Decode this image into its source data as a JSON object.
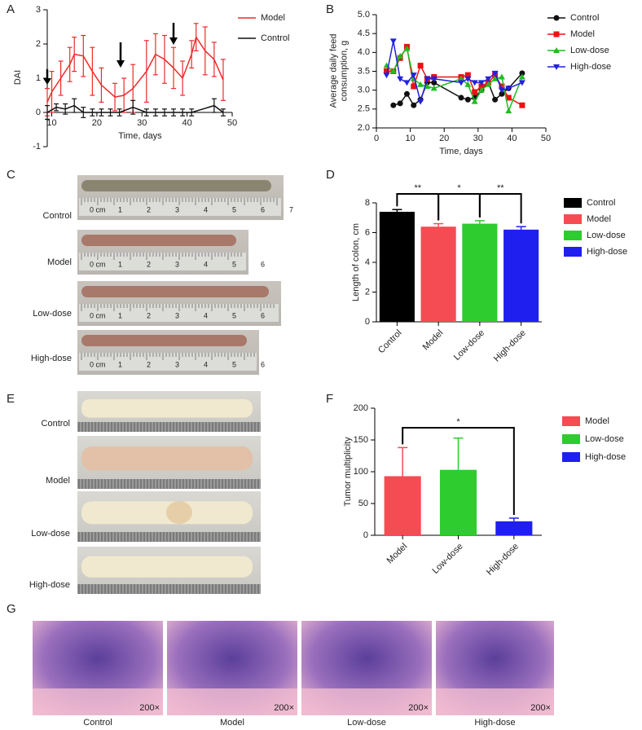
{
  "chart_data": [
    {
      "type": "line",
      "y_label": [
        "DAI"
      ],
      "x_label": "Time, days",
      "xlim": [
        9,
        50
      ],
      "xticks": [
        10,
        20,
        30,
        40,
        50
      ],
      "ylim": [
        -1,
        3
      ],
      "yticks": [
        -1,
        0,
        1,
        2,
        3
      ],
      "series": [
        {
          "name": "Model",
          "color": "#ee2a2a",
          "x": [
            9,
            10,
            12,
            14,
            15,
            17,
            19,
            21,
            24,
            26,
            28,
            31,
            33,
            35,
            37,
            39,
            41,
            42,
            44,
            46,
            48
          ],
          "values": [
            0.3,
            0.6,
            1.0,
            1.4,
            1.7,
            1.65,
            1.2,
            0.8,
            0.45,
            0.5,
            0.7,
            1.2,
            1.7,
            1.55,
            1.3,
            1.0,
            1.7,
            2.2,
            1.8,
            1.55,
            0.95
          ],
          "errors": [
            0.4,
            0.6,
            0.5,
            0.5,
            0.5,
            0.6,
            0.7,
            0.5,
            0.4,
            0.5,
            0.7,
            0.9,
            0.6,
            0.7,
            0.6,
            0.5,
            0.4,
            0.4,
            0.7,
            0.5,
            0.6
          ]
        },
        {
          "name": "Control",
          "color": "#111111",
          "x": [
            9,
            11,
            13,
            15,
            17,
            19,
            21,
            23,
            25,
            28,
            31,
            33,
            35,
            37,
            39,
            41,
            46,
            48
          ],
          "values": [
            0,
            0.15,
            0.1,
            0.2,
            0,
            0,
            0,
            0,
            0,
            0.15,
            0,
            0,
            0,
            0,
            0,
            0,
            0.2,
            0
          ],
          "errors": [
            0.2,
            0.1,
            0.15,
            0.2,
            0.15,
            0.1,
            0.1,
            0.1,
            0.1,
            0.2,
            0.1,
            0.1,
            0.1,
            0.1,
            0.1,
            0.1,
            0.2,
            0.1
          ]
        }
      ]
    },
    {
      "type": "line",
      "y_label": [
        "Average daily feed",
        "consumption, g"
      ],
      "x_label": "Time, days",
      "xlim": [
        0,
        50
      ],
      "xticks": [
        0,
        10,
        20,
        30,
        40,
        50
      ],
      "ylim": [
        2,
        5
      ],
      "yticks": [
        {
          "value": 2,
          "label": "2.0"
        },
        2.5,
        {
          "value": 3,
          "label": "3.0"
        },
        3.5,
        {
          "value": 4,
          "label": "4.0"
        },
        4.5,
        {
          "value": 5,
          "label": "5.0"
        }
      ],
      "series": [
        {
          "name": "Control",
          "color": "#111111",
          "marker": "circle",
          "x": [
            5,
            7,
            9,
            11,
            13,
            15,
            17,
            25,
            27,
            29,
            31,
            33,
            35,
            37,
            39,
            43
          ],
          "values": [
            2.6,
            2.65,
            2.9,
            2.6,
            2.75,
            3.2,
            3.2,
            2.8,
            2.75,
            2.8,
            3.0,
            3.2,
            2.75,
            2.9,
            3.05,
            3.45
          ]
        },
        {
          "name": "Model",
          "color": "#ee1111",
          "marker": "square",
          "x": [
            3,
            5,
            7,
            9,
            11,
            13,
            15,
            17,
            25,
            27,
            29,
            31,
            33,
            35,
            37,
            39,
            43
          ],
          "values": [
            3.5,
            3.5,
            3.85,
            4.15,
            3.1,
            3.65,
            3.3,
            3.35,
            3.35,
            3.4,
            2.95,
            3.1,
            3.2,
            3.4,
            3.1,
            2.8,
            2.6
          ]
        },
        {
          "name": "Low-dose",
          "color": "#22bb22",
          "marker": "triangle-up",
          "x": [
            3,
            5,
            7,
            9,
            11,
            13,
            15,
            17,
            25,
            27,
            29,
            31,
            33,
            35,
            37,
            39,
            43
          ],
          "values": [
            3.65,
            3.5,
            3.9,
            4.1,
            3.3,
            3.15,
            3.1,
            3.05,
            3.3,
            3.15,
            2.7,
            3.0,
            3.15,
            3.3,
            3.35,
            2.45,
            3.35
          ]
        },
        {
          "name": "High-dose",
          "color": "#2222dd",
          "marker": "triangle-down",
          "x": [
            3,
            5,
            7,
            9,
            11,
            13,
            15,
            17,
            25,
            27,
            29,
            31,
            33,
            35,
            37,
            39,
            43
          ],
          "values": [
            3.4,
            4.3,
            3.3,
            3.2,
            3.4,
            2.7,
            3.3,
            3.3,
            3.2,
            3.3,
            3.2,
            3.2,
            3.3,
            3.45,
            3.0,
            3.05,
            3.2
          ]
        }
      ]
    },
    {
      "type": "bar",
      "y_label": [
        "Length of colon, cm"
      ],
      "categories": [
        "Control",
        "Model",
        "Low-dose",
        "High-dose"
      ],
      "values": [
        7.4,
        6.4,
        6.6,
        6.2
      ],
      "errors": [
        0.15,
        0.2,
        0.2,
        0.2
      ],
      "colors": [
        "#000000",
        "#f44c52",
        "#2ecc2e",
        "#1f1fef"
      ],
      "ylim": [
        0,
        8
      ],
      "yticks": [
        0,
        2,
        4,
        6,
        8
      ],
      "significance": [
        "**",
        "*",
        "**"
      ]
    },
    {
      "type": "bar",
      "y_label": [
        "Tumor multiplicity"
      ],
      "categories": [
        "Model",
        "Low-dose",
        "High-dose"
      ],
      "values": [
        93,
        103,
        22
      ],
      "errors": [
        45,
        50,
        5
      ],
      "colors": [
        "#f44c52",
        "#2ecc2e",
        "#1f1fef"
      ],
      "ylim": [
        0,
        200
      ],
      "yticks": [
        0,
        50,
        100,
        150,
        200
      ],
      "significance": [
        "*"
      ]
    }
  ],
  "figure": {
    "panel_letters": [
      "A",
      "B",
      "C",
      "D",
      "E",
      "F",
      "G"
    ],
    "c": {
      "labels": [
        "Control",
        "Model",
        "Low-dose",
        "High-dose"
      ],
      "ruler": [
        "0 cm",
        "1",
        "2",
        "3",
        "4",
        "5",
        "6",
        "7"
      ]
    },
    "e": {
      "labels": [
        "Control",
        "Model",
        "Low-dose",
        "High-dose"
      ]
    },
    "g": {
      "labels": [
        "Control",
        "Model",
        "Low-dose",
        "High-dose"
      ],
      "magnification": "200×"
    }
  }
}
